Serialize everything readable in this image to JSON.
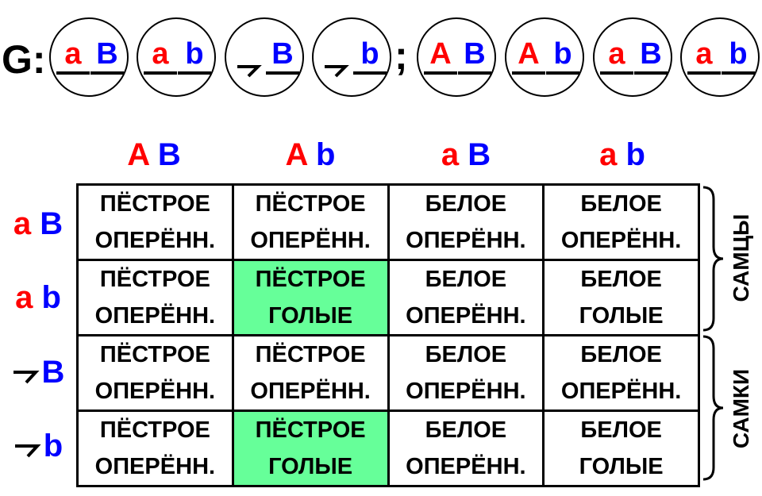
{
  "gamete_label": "G:",
  "separator": ";",
  "colors": {
    "dominant_a": "#ff0000",
    "b_gene": "#0000ff",
    "highlight": "#66ff99"
  },
  "parent1_gametes": [
    {
      "left": "a",
      "right": "B"
    },
    {
      "left": "a",
      "right": "b"
    },
    {
      "left": "y-chromosome",
      "right": "B"
    },
    {
      "left": "y-chromosome",
      "right": "b"
    }
  ],
  "parent2_gametes": [
    {
      "left": "A",
      "right": "B"
    },
    {
      "left": "A",
      "right": "b"
    },
    {
      "left": "a",
      "right": "B"
    },
    {
      "left": "a",
      "right": "b"
    }
  ],
  "columns": [
    {
      "a": "A",
      "b": "B"
    },
    {
      "a": "A",
      "b": "b"
    },
    {
      "a": "a",
      "b": "B"
    },
    {
      "a": "a",
      "b": "b"
    }
  ],
  "rows": [
    {
      "a": "a",
      "b": "B"
    },
    {
      "a": "a",
      "b": "b"
    },
    {
      "a": "y-chromosome",
      "b": "B"
    },
    {
      "a": "y-chromosome",
      "b": "b"
    }
  ],
  "cells": [
    [
      [
        "ПЁСТРОЕ",
        "ОПЕРЁНН."
      ],
      [
        "ПЁСТРОЕ",
        "ОПЕРЁНН."
      ],
      [
        "БЕЛОЕ",
        "ОПЕРЁНН."
      ],
      [
        "БЕЛОЕ",
        "ОПЕРЁНН."
      ]
    ],
    [
      [
        "ПЁСТРОЕ",
        "ОПЕРЁНН."
      ],
      [
        "ПЁСТРОЕ",
        "ГОЛЫЕ"
      ],
      [
        "БЕЛОЕ",
        "ОПЕРЁНН."
      ],
      [
        "БЕЛОЕ",
        "ГОЛЫЕ"
      ]
    ],
    [
      [
        "ПЁСТРОЕ",
        "ОПЕРЁНН."
      ],
      [
        "ПЁСТРОЕ",
        "ОПЕРЁНН."
      ],
      [
        "БЕЛОЕ",
        "ОПЕРЁНН."
      ],
      [
        "БЕЛОЕ",
        "ОПЕРЁНН."
      ]
    ],
    [
      [
        "ПЁСТРОЕ",
        "ОПЕРЁНН."
      ],
      [
        "ПЁСТРОЕ",
        "ГОЛЫЕ"
      ],
      [
        "БЕЛОЕ",
        "ОПЕРЁНН."
      ],
      [
        "БЕЛОЕ",
        "ГОЛЫЕ"
      ]
    ]
  ],
  "highlighted_cells": [
    [
      1,
      1
    ],
    [
      3,
      1
    ]
  ],
  "groups": {
    "males": "САМЦЫ",
    "females": "САМКИ"
  }
}
